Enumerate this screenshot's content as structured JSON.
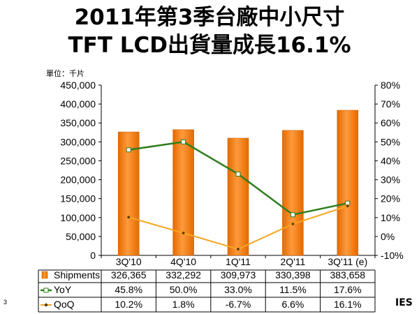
{
  "slide": {
    "title_line1": "2011年第3季台廠中小尺寸",
    "title_line2": "TFT LCD出貨量成長16.1%",
    "unit_label": "單位：千片",
    "slide_number": "3",
    "logo": "IES"
  },
  "chart_data": {
    "type": "bar",
    "categories": [
      "3Q'10",
      "4Q'10",
      "1Q'11",
      "2Q'11",
      "3Q'11 (e)"
    ],
    "series": [
      {
        "name": "Shipments",
        "type": "bar",
        "axis": "left",
        "values": [
          326365,
          332292,
          309973,
          330398,
          383658
        ],
        "labels": [
          "326,365",
          "332,292",
          "309,973",
          "330,398",
          "383,658"
        ],
        "color": "#F07A10"
      },
      {
        "name": "YoY",
        "type": "line",
        "axis": "right",
        "values": [
          45.8,
          50.0,
          33.0,
          11.5,
          17.6
        ],
        "labels": [
          "45.8%",
          "50.0%",
          "33.0%",
          "11.5%",
          "17.6%"
        ],
        "color": "#2E7D1E"
      },
      {
        "name": "QoQ",
        "type": "line",
        "axis": "right",
        "values": [
          10.2,
          1.8,
          -6.7,
          6.6,
          16.1
        ],
        "labels": [
          "10.2%",
          "1.8%",
          "-6.7%",
          "6.6%",
          "16.1%"
        ],
        "color": "#F5A623"
      }
    ],
    "y_left": {
      "min": 0,
      "max": 450000,
      "step": 50000,
      "ticks": [
        "0",
        "50,000",
        "100,000",
        "150,000",
        "200,000",
        "250,000",
        "300,000",
        "350,000",
        "400,000",
        "450,000"
      ]
    },
    "y_right": {
      "min": -10,
      "max": 80,
      "step": 10,
      "ticks": [
        "-10%",
        "0%",
        "10%",
        "20%",
        "30%",
        "40%",
        "50%",
        "60%",
        "70%",
        "80%"
      ]
    },
    "grid": false,
    "legend": "data-table-bottom"
  }
}
